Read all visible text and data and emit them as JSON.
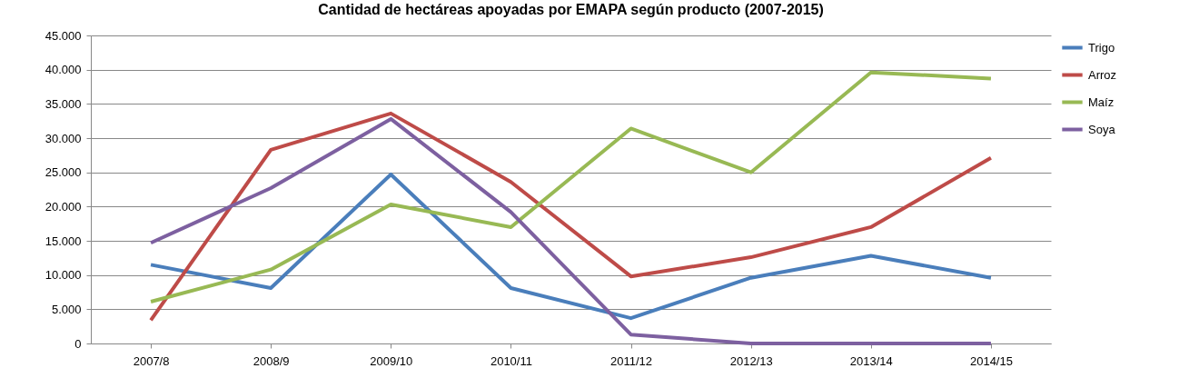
{
  "chart_data": {
    "type": "line",
    "title": "Cantidad de hectáreas apoyadas por EMAPA según producto (2007-2015)",
    "categories": [
      "2007/8",
      "2008/9",
      "2009/10",
      "2010/11",
      "2011/12",
      "2012/13",
      "2013/14",
      "2014/15"
    ],
    "series": [
      {
        "name": "Trigo",
        "color": "#4a7ebb",
        "values": [
          11500,
          8100,
          24700,
          8100,
          3700,
          9600,
          12800,
          9600
        ]
      },
      {
        "name": "Arroz",
        "color": "#be4b48",
        "values": [
          3400,
          28300,
          33600,
          23600,
          9800,
          12600,
          17000,
          27100
        ]
      },
      {
        "name": "Maíz",
        "color": "#98b954",
        "values": [
          6100,
          10800,
          20300,
          17000,
          31400,
          25000,
          39600,
          38700
        ]
      },
      {
        "name": "Soya",
        "color": "#7d60a0",
        "values": [
          14700,
          22700,
          32800,
          19200,
          1300,
          0,
          0,
          0
        ]
      }
    ],
    "ylim": [
      0,
      45000
    ],
    "yticks": [
      {
        "value": 0,
        "label": "0"
      },
      {
        "value": 5000,
        "label": "5.000"
      },
      {
        "value": 10000,
        "label": "10.000"
      },
      {
        "value": 15000,
        "label": "15.000"
      },
      {
        "value": 20000,
        "label": "20.000"
      },
      {
        "value": 25000,
        "label": "25.000"
      },
      {
        "value": 30000,
        "label": "30.000"
      },
      {
        "value": 35000,
        "label": "35.000"
      },
      {
        "value": 40000,
        "label": "40.000"
      },
      {
        "value": 45000,
        "label": "45.000"
      }
    ],
    "grid": "y",
    "legend": "right",
    "marker": "none"
  }
}
